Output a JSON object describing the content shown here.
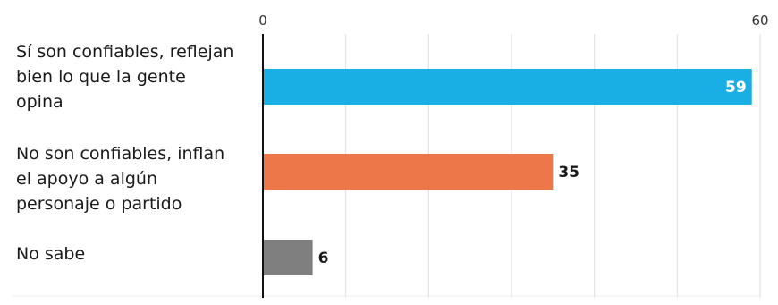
{
  "chart_data": {
    "type": "bar",
    "orientation": "horizontal",
    "categories": [
      "Sí son confiables, reflejan\nbien lo que la gente\nopina",
      "No son confiables, inflan\nel apoyo a algún\npersonaje o partido",
      "No sabe"
    ],
    "values": [
      59,
      35,
      6
    ],
    "data_labels": [
      "59",
      "35",
      "6"
    ],
    "colors": [
      "#19aee4",
      "#ee7749",
      "#7f7f7f"
    ],
    "label_colors": [
      "#ffffff",
      "#1a1a1a",
      "#1a1a1a"
    ],
    "label_inside": [
      true,
      false,
      false
    ],
    "xlim": [
      0,
      60
    ],
    "x_ticks": [
      0,
      60
    ],
    "x_tick_labels": [
      "0",
      "60"
    ],
    "x_gridlines": [
      0,
      10,
      20,
      30,
      40,
      50,
      60
    ],
    "grid": true,
    "title": "",
    "xlabel": "",
    "ylabel": ""
  }
}
